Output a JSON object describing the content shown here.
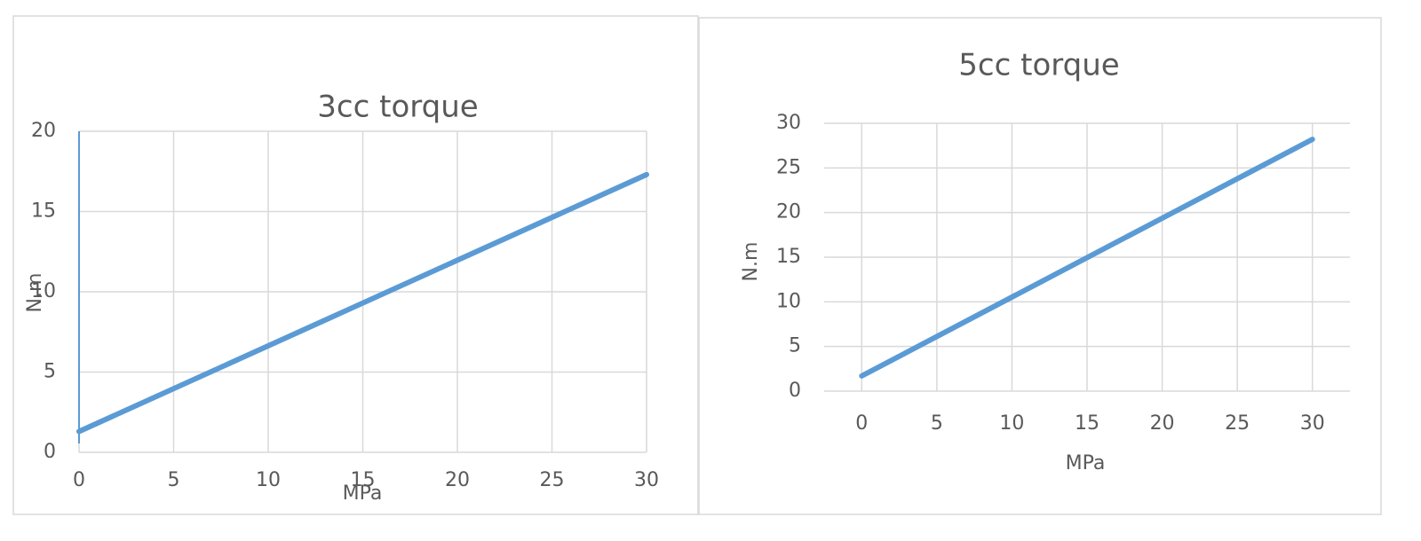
{
  "chart_data": [
    {
      "type": "line",
      "title": "3cc torque",
      "xlabel": "MPa",
      "ylabel": "N.m",
      "x": [
        0,
        30
      ],
      "values": [
        1.3,
        17.3
      ],
      "color": "#5b9bd5",
      "xlim": [
        0,
        30
      ],
      "xticks": [
        0,
        5,
        10,
        15,
        20,
        25,
        30
      ],
      "ylim": [
        0,
        20
      ],
      "yticks": [
        0,
        5,
        10,
        15,
        20
      ],
      "grid": true
    },
    {
      "type": "line",
      "title": "5cc torque",
      "xlabel": "MPa",
      "ylabel": "N.m",
      "x": [
        0,
        30
      ],
      "values": [
        1.7,
        28.2
      ],
      "color": "#5b9bd5",
      "xlim": [
        -2.5,
        32.5
      ],
      "xticks": [
        0,
        5,
        10,
        15,
        20,
        25,
        30
      ],
      "ylim": [
        0,
        30
      ],
      "yticks": [
        0,
        5,
        10,
        15,
        20,
        25,
        30
      ],
      "grid": true
    }
  ]
}
